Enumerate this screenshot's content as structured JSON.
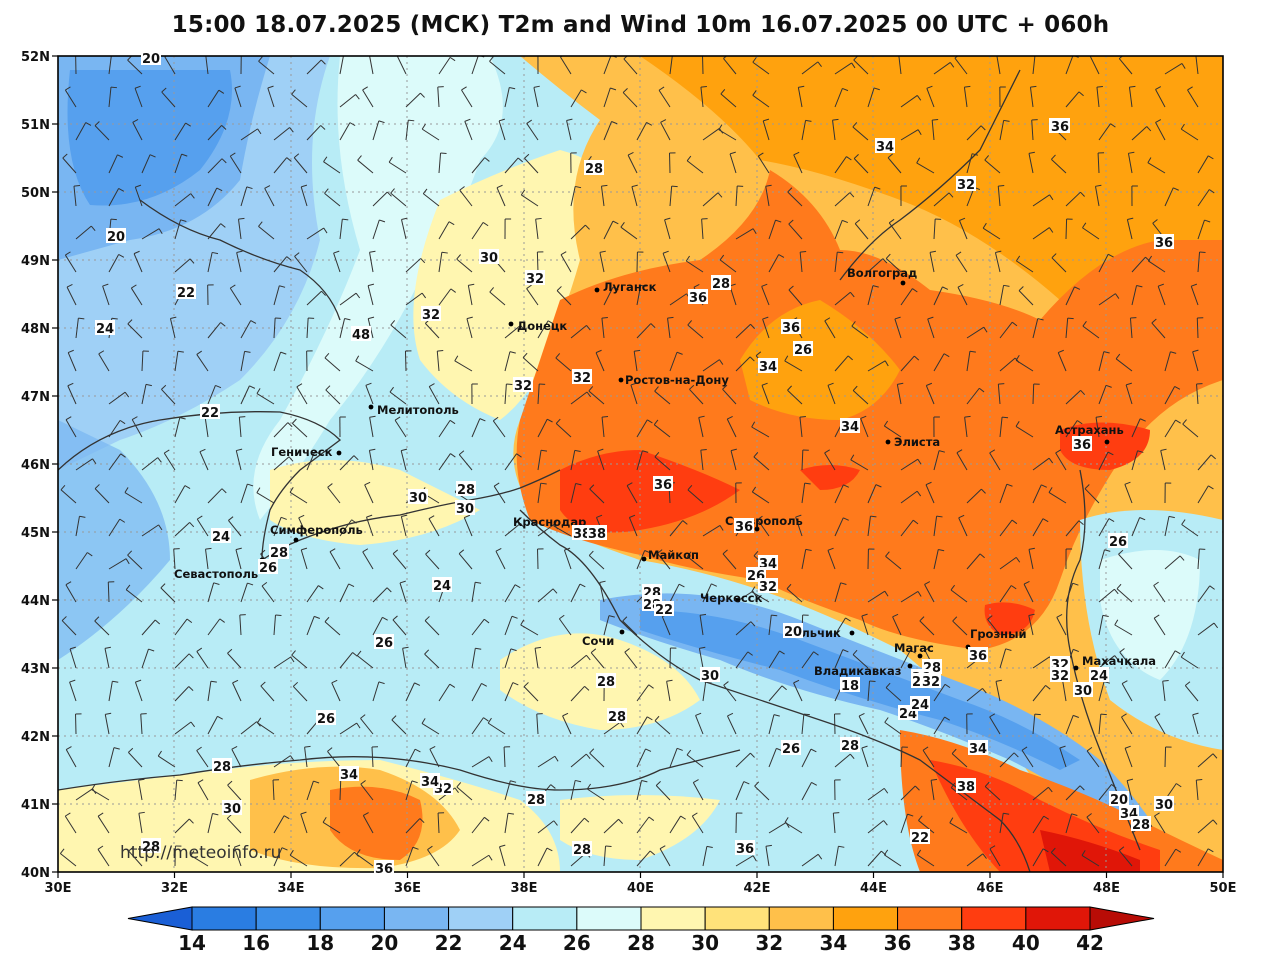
{
  "title": "15:00 18.07.2025 (МСК) T2m and Wind 10m 16.07.2025 00 UTC + 060h",
  "watermark": "http://meteoinfo.ru",
  "lat_labels": [
    "52N",
    "51N",
    "50N",
    "49N",
    "48N",
    "47N",
    "46N",
    "45N",
    "44N",
    "43N",
    "42N",
    "41N",
    "40N"
  ],
  "lon_labels": [
    "30E",
    "32E",
    "34E",
    "36E",
    "38E",
    "40E",
    "42E",
    "44E",
    "46E",
    "48E",
    "50E"
  ],
  "colorbar": {
    "ticks": [
      "14",
      "16",
      "18",
      "20",
      "22",
      "24",
      "26",
      "28",
      "30",
      "32",
      "34",
      "36",
      "38",
      "40",
      "42"
    ],
    "colors": [
      "#2a7de2",
      "#3b8ee8",
      "#56a0ee",
      "#79b6f2",
      "#9fd0f6",
      "#b8ecf6",
      "#dcfbfa",
      "#fff6b0",
      "#ffe27a",
      "#ffc04a",
      "#ffa20e",
      "#ff7a1c",
      "#ff3d10",
      "#e01608"
    ],
    "low_color": "#1a5fd6",
    "high_color": "#b80c06"
  },
  "cities": [
    {
      "name": "Луганск"
    },
    {
      "name": "Донецк"
    },
    {
      "name": "Волгоград"
    },
    {
      "name": "Ростов-на-Дону"
    },
    {
      "name": "Мелитополь"
    },
    {
      "name": "Геническ"
    },
    {
      "name": "Элиста"
    },
    {
      "name": "Астрахань"
    },
    {
      "name": "Краснодар"
    },
    {
      "name": "Ставрополь"
    },
    {
      "name": "Симферополь"
    },
    {
      "name": "Майкоп"
    },
    {
      "name": "Севастополь"
    },
    {
      "name": "Черкесск"
    },
    {
      "name": "Сочи"
    },
    {
      "name": "Нальчик"
    },
    {
      "name": "Грозный"
    },
    {
      "name": "Магас"
    },
    {
      "name": "Махачкала"
    },
    {
      "name": "Владикавказ"
    }
  ],
  "contour_labels": [
    "20",
    "28",
    "34",
    "34",
    "32",
    "20",
    "36",
    "22",
    "30",
    "32",
    "28",
    "32",
    "36",
    "24",
    "48",
    "36",
    "26",
    "32",
    "32",
    "34",
    "34",
    "22",
    "36",
    "28",
    "30",
    "30",
    "36",
    "24",
    "38",
    "38",
    "36",
    "26",
    "28",
    "26",
    "24",
    "34",
    "26",
    "28",
    "32",
    "30",
    "28",
    "22",
    "20",
    "26",
    "28",
    "30",
    "28",
    "32",
    "30",
    "18",
    "26",
    "28",
    "36",
    "32",
    "32",
    "24",
    "26",
    "28",
    "24",
    "30",
    "24",
    "28",
    "38",
    "20",
    "34",
    "30",
    "28",
    "28",
    "32",
    "34",
    "34",
    "36",
    "28",
    "36",
    "26",
    "22",
    "30",
    "34",
    "28",
    "36",
    "28"
  ]
}
